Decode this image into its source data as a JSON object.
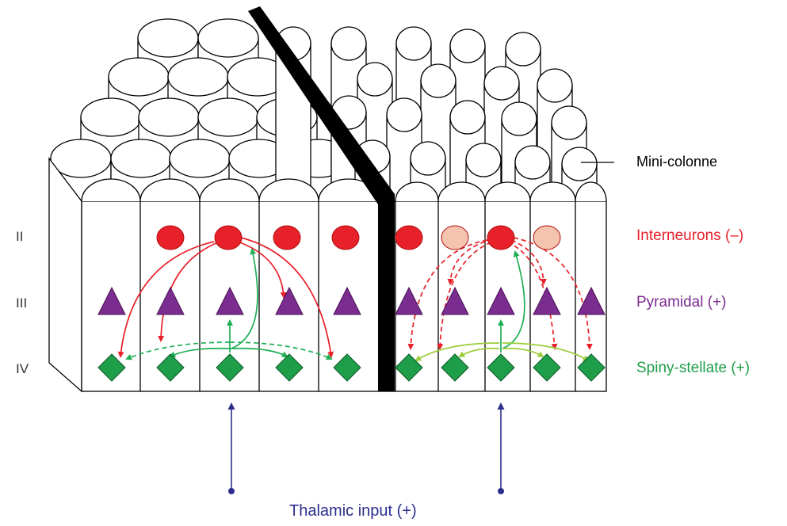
{
  "labels": {
    "mini_colonne": "Mini-colonne",
    "layer_ii": "II",
    "layer_iii": "III",
    "layer_iv": "IV",
    "interneurons": "Interneurons (–)",
    "pyramidal": "Pyramidal (+)",
    "spiny_stellate": "Spiny-stellate (+)",
    "thalamic_input": "Thalamic input (+)"
  },
  "colors": {
    "interneuron": "#e8202a",
    "interneuron_inhibited": "#f5c4ae",
    "pyramidal": "#7b2c8f",
    "spiny_stellate": "#1f9e4a",
    "excitatory_arrow": "#1fae55",
    "lateral_arrow_light": "#9acd3a",
    "inhibitory_arrow": "#e8202a",
    "thalamic": "#2b2e8c",
    "label_interneurons": "#e8202a",
    "label_pyramidal": "#7b2c8f",
    "label_spiny": "#1f9e4a",
    "label_thalamic": "#2b2e8c"
  },
  "symbols": {
    "interneuron": "red-circle",
    "pyramidal": "purple-triangle",
    "spiny_stellate": "green-diamond",
    "barrier": "black-bar"
  }
}
